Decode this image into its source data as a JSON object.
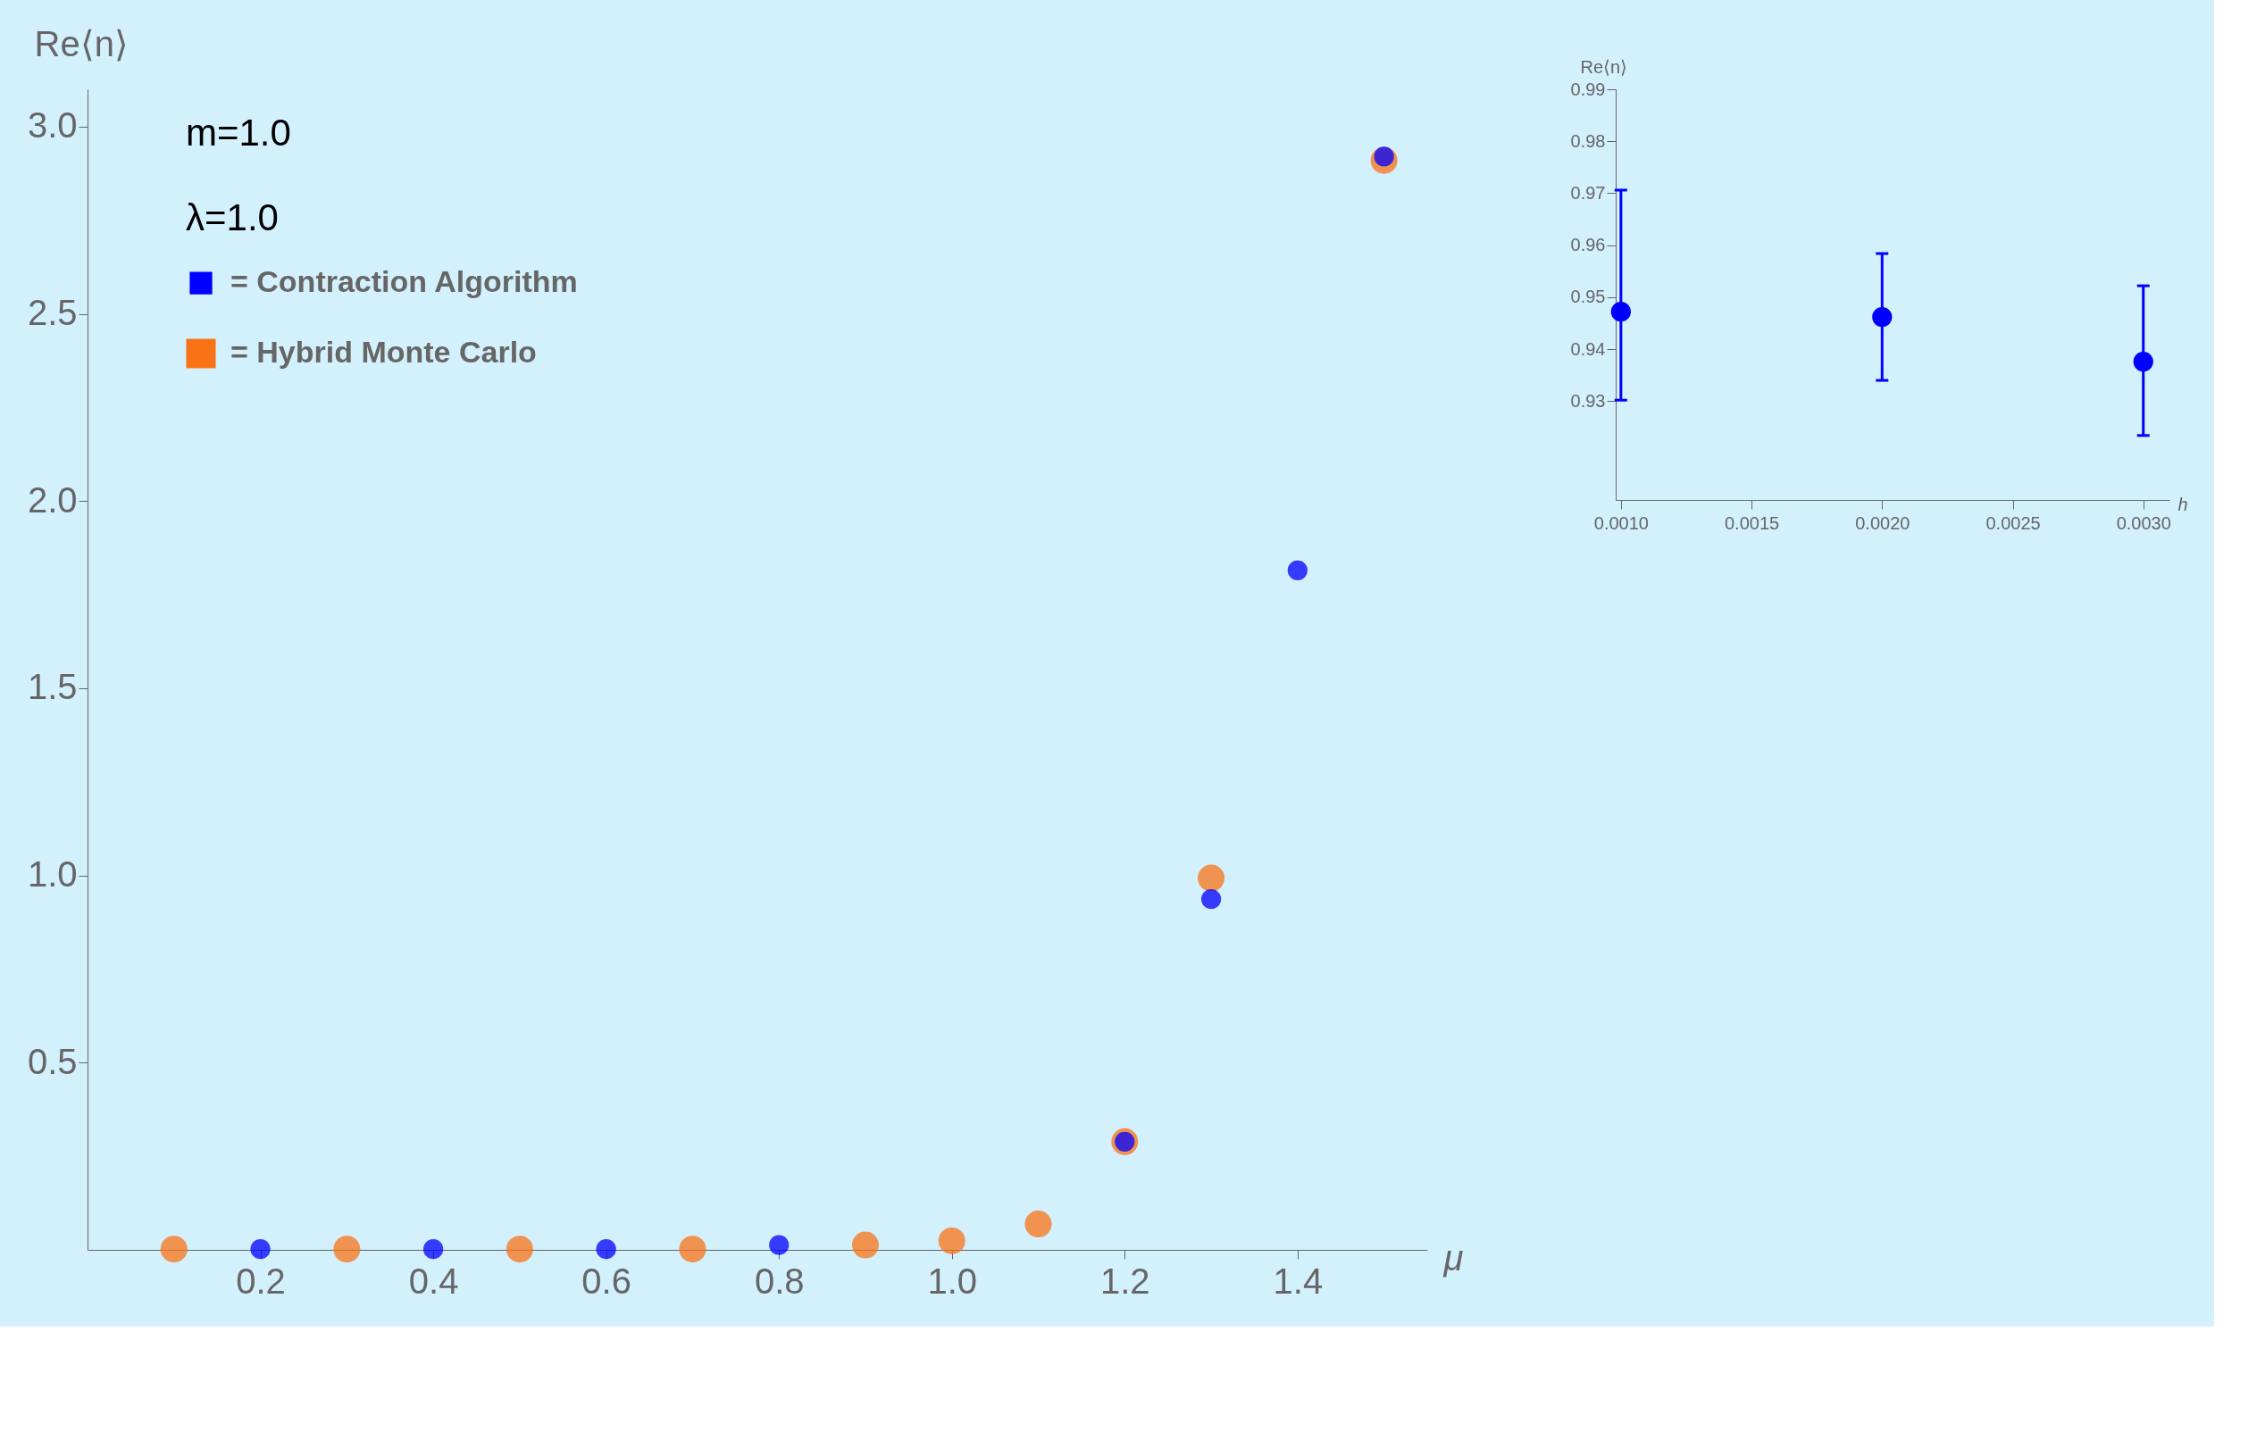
{
  "chart_data": [
    {
      "type": "scatter",
      "xlabel": "μ",
      "ylabel": "Re⟨n⟩",
      "annotations": [
        "m=1.0",
        "λ=1.0"
      ],
      "marker": "circle",
      "legend": "top left",
      "xlim": [
        0,
        1.55
      ],
      "ylim": [
        0,
        3.1
      ],
      "xticks": [
        0.2,
        0.4,
        0.6,
        0.8,
        {
          "value": 1,
          "label": "1.0"
        },
        1.2,
        1.4
      ],
      "yticks": [
        0.5,
        {
          "value": 1,
          "label": "1.0"
        },
        1.5,
        {
          "value": 2,
          "label": "2.0"
        },
        2.5,
        {
          "value": 3,
          "label": "3.0"
        }
      ],
      "series": [
        {
          "name": "= Contraction Algorithm",
          "color": "#0000ff",
          "x": [
            0.2,
            0.4,
            0.6,
            0.8,
            1.2,
            1.3,
            1.4,
            1.5
          ],
          "values": [
            0.002,
            0.002,
            0.002,
            0.013,
            0.289,
            0.937,
            1.815,
            2.92
          ]
        },
        {
          "name": "= Hybrid Monte Carlo",
          "color": "#f97316",
          "x": [
            0.1,
            0.3,
            0.5,
            0.7,
            0.9,
            1.0,
            1.1,
            1.2,
            1.3,
            1.5
          ],
          "values": [
            0.002,
            0.002,
            0.002,
            0.002,
            0.013,
            0.024,
            0.069,
            0.289,
            0.993,
            2.91
          ]
        }
      ]
    },
    {
      "type": "scatter",
      "xlabel": "h",
      "ylabel": "Re⟨n⟩",
      "marker": "circle",
      "xlim": [
        0.00098,
        0.0031
      ],
      "ylim": [
        0.911,
        0.99
      ],
      "xticks": [
        {
          "value": 0.001,
          "label": "0.0010"
        },
        {
          "value": 0.0015,
          "label": "0.0015"
        },
        {
          "value": 0.002,
          "label": "0.0020"
        },
        {
          "value": 0.0025,
          "label": "0.0025"
        },
        {
          "value": 0.003,
          "label": "0.0030"
        }
      ],
      "yticks": [
        0.93,
        0.94,
        0.95,
        0.96,
        0.97,
        0.98,
        0.99
      ],
      "series": [
        {
          "color": "#0000ff",
          "x": [
            0.001,
            0.002,
            0.003
          ],
          "values": [
            0.9472,
            0.9462,
            0.9376
          ],
          "errors": [
            [
              0.9302,
              0.9706
            ],
            [
              0.934,
              0.9584
            ],
            [
              0.9234,
              0.9522
            ]
          ]
        }
      ]
    }
  ]
}
